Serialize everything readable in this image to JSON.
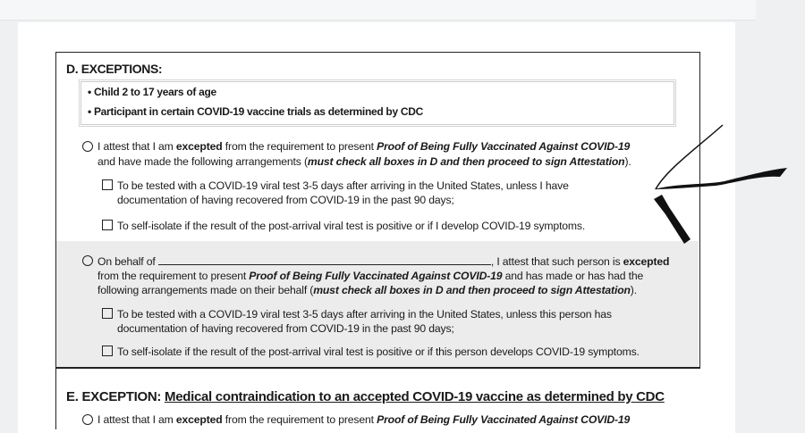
{
  "section_d": {
    "heading": "D. EXCEPTIONS:",
    "bullets": [
      "Child 2 to 17 years of age",
      "Participant in certain COVID-19 vaccine trials as determined by CDC"
    ],
    "self": {
      "l1a": "I attest that I am ",
      "l1b": "excepted",
      "l1c": " from the requirement to present ",
      "l1d": "Proof of Being Fully Vaccinated Against COVID-19",
      "l2a": "and have made the following arrangements (",
      "l2b": "must check all boxes in D and then proceed to sign Attestation",
      "l2c": ").",
      "check1_l1": "To be tested with a COVID-19 viral test 3-5 days after arriving in the United States, unless I have",
      "check1_l2": "documentation of having recovered from COVID-19 in the past 90 days;",
      "check2": "To self-isolate if the result of the post-arrival viral test is positive or if I develop COVID-19 symptoms."
    },
    "behalf": {
      "l1a": "On behalf of",
      "l1b": ", I attest that such person is ",
      "l1c": "excepted",
      "l2a": "from the requirement to present ",
      "l2b": "Proof of Being Fully Vaccinated Against COVID-19",
      "l2c": " and has made or has had the",
      "l3a": "following arrangements made on their behalf (",
      "l3b": "must check all boxes in D and then proceed to sign Attestation",
      "l3c": ").",
      "check1_l1": "To be tested with a COVID-19 viral test 3-5 days after arriving in the United States, unless this person has",
      "check1_l2": "documentation of having recovered from COVID-19 in the past 90 days;",
      "check2": "To self-isolate if the result of the post-arrival viral test is positive or if this person develops COVID-19 symptoms."
    }
  },
  "section_e": {
    "heading": "E.  EXCEPTION: ",
    "heading_underlined": "Medical contraindication to an accepted COVID-19 vaccine as determined by CDC",
    "l1a": "I attest that I am ",
    "l1b": "excepted",
    "l1c": " from the requirement to present ",
    "l1d": "Proof of Being Fully Vaccinated Against COVID-19"
  }
}
